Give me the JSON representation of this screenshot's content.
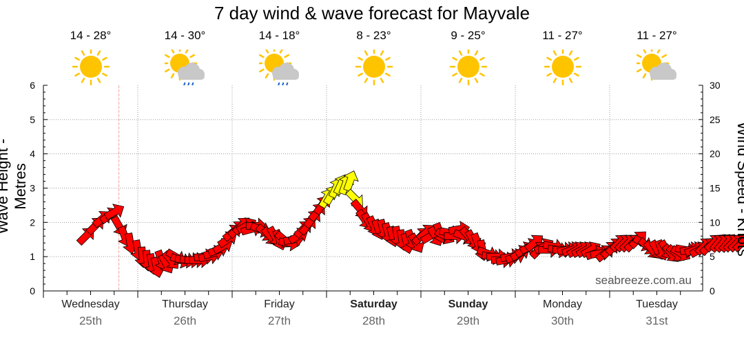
{
  "title": "7 day wind & wave forecast for Mayvale",
  "days": [
    {
      "name": "Wednesday",
      "date": "25th",
      "temp": "14 - 28°",
      "icon": "sun-icon",
      "bold": false
    },
    {
      "name": "Thursday",
      "date": "26th",
      "temp": "14 - 30°",
      "icon": "sun-cloud-rain-icon",
      "bold": false
    },
    {
      "name": "Friday",
      "date": "27th",
      "temp": "14 - 18°",
      "icon": "sun-cloud-rain-icon",
      "bold": false
    },
    {
      "name": "Saturday",
      "date": "28th",
      "temp": "8 - 23°",
      "icon": "sun-icon",
      "bold": true
    },
    {
      "name": "Sunday",
      "date": "29th",
      "temp": "9 - 25°",
      "icon": "sun-icon",
      "bold": true
    },
    {
      "name": "Monday",
      "date": "30th",
      "temp": "11 - 27°",
      "icon": "sun-icon",
      "bold": false
    },
    {
      "name": "Tuesday",
      "date": "31st",
      "temp": "11 - 27°",
      "icon": "sun-cloud-icon",
      "bold": false
    }
  ],
  "watermark": "seabreeze.com.au",
  "colors": {
    "strong_wind": "#ff0000",
    "light_wind": "#ffff00",
    "now_line": "#f4a0a0",
    "sun": "#ffc400",
    "cloud": "#c8c8c8",
    "rain": "#1e64c8"
  },
  "chart_data": {
    "type": "line",
    "ylabel": "Wave Height - Metres",
    "y2label": "Wind Speed - Knots",
    "ylim": [
      0,
      6
    ],
    "y2lim": [
      0,
      30
    ],
    "yticks": [
      "0",
      "1",
      "2",
      "3",
      "4",
      "5",
      "6"
    ],
    "y2ticks": [
      "0",
      "5",
      "10",
      "15",
      "20",
      "25",
      "30"
    ],
    "x_unit": "days from Wednesday 25th 00:00",
    "now_x": 0.8,
    "grid": true,
    "series": [
      {
        "wind_speed_knots": [
          [
            0.45,
            8
          ],
          [
            0.55,
            9.5
          ],
          [
            0.62,
            10.5
          ],
          [
            0.7,
            11
          ],
          [
            0.75,
            11.5
          ],
          [
            0.8,
            9.5
          ],
          [
            0.86,
            8
          ],
          [
            0.92,
            7
          ],
          [
            1.0,
            6
          ],
          [
            1.05,
            5
          ],
          [
            1.1,
            4.5
          ],
          [
            1.15,
            4
          ],
          [
            1.2,
            3.5
          ],
          [
            1.25,
            4.5
          ],
          [
            1.3,
            4
          ],
          [
            1.35,
            4.5
          ],
          [
            1.4,
            5
          ],
          [
            1.45,
            4.5
          ],
          [
            1.5,
            4.5
          ],
          [
            1.55,
            4.5
          ],
          [
            1.6,
            4.5
          ],
          [
            1.65,
            4.5
          ],
          [
            1.7,
            5
          ],
          [
            1.75,
            5
          ],
          [
            1.8,
            5.5
          ],
          [
            1.85,
            6
          ],
          [
            1.9,
            6.5
          ],
          [
            1.95,
            7.5
          ],
          [
            2.0,
            8.5
          ],
          [
            2.05,
            9
          ],
          [
            2.1,
            9.5
          ],
          [
            2.15,
            9.5
          ],
          [
            2.2,
            9
          ],
          [
            2.25,
            9.5
          ],
          [
            2.3,
            9
          ],
          [
            2.35,
            8.5
          ],
          [
            2.4,
            8
          ],
          [
            2.45,
            8
          ],
          [
            2.5,
            7.5
          ],
          [
            2.55,
            7.5
          ],
          [
            2.6,
            7
          ],
          [
            2.65,
            7.5
          ],
          [
            2.7,
            8
          ],
          [
            2.75,
            9
          ],
          [
            2.8,
            9.5
          ],
          [
            2.85,
            10.5
          ],
          [
            2.9,
            11.5
          ],
          [
            2.95,
            12.5
          ],
          [
            3.0,
            13.5
          ],
          [
            3.05,
            14
          ],
          [
            3.1,
            15
          ],
          [
            3.15,
            15.5
          ],
          [
            3.2,
            15.5
          ],
          [
            3.25,
            16
          ],
          [
            3.3,
            13.5
          ],
          [
            3.35,
            12
          ],
          [
            3.4,
            10.5
          ],
          [
            3.45,
            10
          ],
          [
            3.5,
            9.5
          ],
          [
            3.55,
            9
          ],
          [
            3.6,
            9
          ],
          [
            3.65,
            8.5
          ],
          [
            3.7,
            8
          ],
          [
            3.75,
            8
          ],
          [
            3.8,
            7.5
          ],
          [
            3.85,
            7
          ],
          [
            3.9,
            7.5
          ],
          [
            3.95,
            7
          ],
          [
            4.0,
            8
          ],
          [
            4.05,
            8.5
          ],
          [
            4.1,
            8
          ],
          [
            4.15,
            8
          ],
          [
            4.2,
            8.5
          ],
          [
            4.25,
            8
          ],
          [
            4.3,
            8.5
          ],
          [
            4.35,
            8
          ],
          [
            4.4,
            9
          ],
          [
            4.45,
            8
          ],
          [
            4.5,
            8
          ],
          [
            4.55,
            7.5
          ],
          [
            4.6,
            7
          ],
          [
            4.65,
            6
          ],
          [
            4.7,
            5.5
          ],
          [
            4.75,
            5
          ],
          [
            4.8,
            5
          ],
          [
            4.85,
            4.5
          ],
          [
            4.9,
            4.5
          ],
          [
            4.95,
            5
          ],
          [
            5.0,
            5
          ],
          [
            5.05,
            5.5
          ],
          [
            5.1,
            6
          ],
          [
            5.15,
            6.5
          ],
          [
            5.2,
            7
          ],
          [
            5.25,
            6
          ],
          [
            5.3,
            6.5
          ],
          [
            5.35,
            6
          ],
          [
            5.4,
            6.5
          ],
          [
            5.45,
            6
          ],
          [
            5.5,
            6
          ],
          [
            5.55,
            6
          ],
          [
            5.6,
            6
          ],
          [
            5.65,
            6
          ],
          [
            5.7,
            6
          ],
          [
            5.75,
            6
          ],
          [
            5.8,
            6
          ],
          [
            5.85,
            5.5
          ],
          [
            5.9,
            5.5
          ],
          [
            5.95,
            5.5
          ],
          [
            6.0,
            6
          ],
          [
            6.05,
            6.5
          ],
          [
            6.1,
            7
          ],
          [
            6.15,
            7
          ],
          [
            6.2,
            7
          ],
          [
            6.25,
            7
          ],
          [
            6.3,
            7.5
          ],
          [
            6.35,
            7
          ],
          [
            6.4,
            6.5
          ],
          [
            6.45,
            6
          ],
          [
            6.5,
            6
          ],
          [
            6.55,
            6
          ],
          [
            6.6,
            6
          ],
          [
            6.65,
            5.5
          ],
          [
            6.7,
            5.5
          ],
          [
            6.75,
            5.5
          ],
          [
            6.8,
            6
          ],
          [
            6.85,
            6
          ],
          [
            6.9,
            6
          ],
          [
            6.95,
            6
          ],
          [
            7.0,
            6.5
          ],
          [
            7.05,
            6.5
          ],
          [
            7.1,
            7
          ],
          [
            7.15,
            7
          ],
          [
            7.2,
            7
          ],
          [
            7.25,
            7
          ],
          [
            7.3,
            7
          ],
          [
            7.35,
            7
          ],
          [
            7.4,
            7
          ]
        ],
        "wind_to_direction_deg": [
          45,
          45,
          50,
          55,
          60,
          150,
          160,
          170,
          170,
          175,
          175,
          170,
          165,
          160,
          150,
          140,
          120,
          110,
          100,
          95,
          90,
          90,
          85,
          80,
          75,
          70,
          60,
          55,
          50,
          45,
          45,
          60,
          75,
          90,
          110,
          130,
          140,
          150,
          160,
          130,
          100,
          80,
          60,
          45,
          40,
          40,
          40,
          35,
          30,
          30,
          25,
          25,
          20,
          20,
          135,
          140,
          145,
          150,
          155,
          160,
          165,
          165,
          165,
          170,
          170,
          165,
          160,
          150,
          45,
          50,
          60,
          150,
          160,
          120,
          100,
          90,
          80,
          110,
          140,
          150,
          160,
          170,
          110,
          100,
          90,
          90,
          80,
          80,
          70,
          60,
          60,
          60,
          50,
          45,
          60,
          90,
          100,
          100,
          90,
          80,
          70,
          60,
          60,
          60,
          60,
          70,
          80,
          50,
          45,
          45,
          45,
          45,
          45,
          45,
          45,
          120,
          130,
          140,
          150,
          160,
          150,
          140,
          130,
          120,
          100,
          80,
          70,
          60,
          45,
          45,
          45,
          40,
          40,
          40,
          45,
          45,
          45
        ]
      }
    ],
    "legend": "none"
  }
}
